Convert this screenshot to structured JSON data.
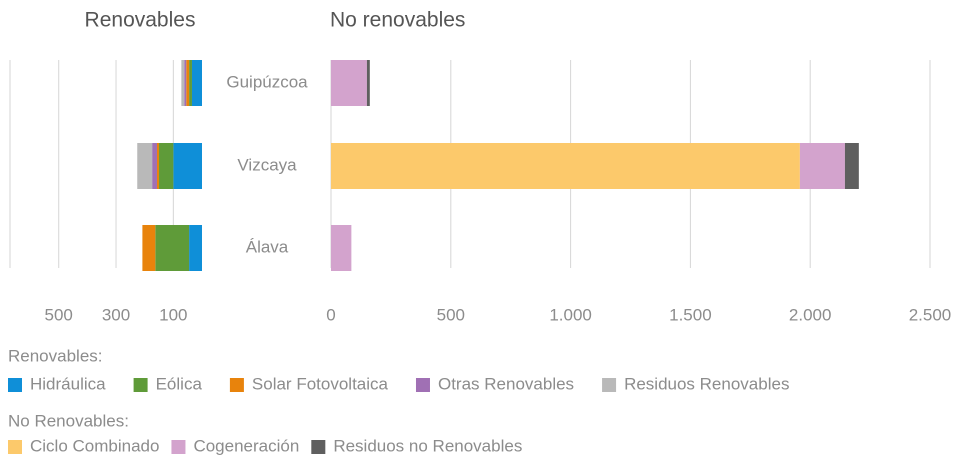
{
  "chart_data": [
    {
      "type": "hbar_stacked",
      "title": "Renovables",
      "legend_title": "Renovables:",
      "categories": [
        "Guipúzcoa",
        "Vizcaya",
        "Álava"
      ],
      "xlim": [
        670,
        0
      ],
      "xticks": [
        500,
        300,
        100
      ],
      "grid": true,
      "series": [
        {
          "name": "Hidráulica",
          "color": "#0f8fd8",
          "values": [
            35,
            100,
            45
          ]
        },
        {
          "name": "Eólica",
          "color": "#5f9b39",
          "values": [
            10,
            50,
            118
          ]
        },
        {
          "name": "Solar Fotovoltaica",
          "color": "#e8830c",
          "values": [
            10,
            7,
            45
          ]
        },
        {
          "name": "Otras Renovables",
          "color": "#a070b4",
          "values": [
            7,
            17,
            0
          ]
        },
        {
          "name": "Residuos Renovables",
          "color": "#b9b9b9",
          "values": [
            10,
            52,
            0
          ]
        }
      ]
    },
    {
      "type": "hbar_stacked",
      "title": "No renovables",
      "legend_title": "No Renovables:",
      "xlim": [
        0,
        2500
      ],
      "xticks": [
        0,
        500,
        {
          "value": 1000,
          "label": "1.000"
        },
        {
          "value": 1500,
          "label": "1.500"
        },
        {
          "value": 2000,
          "label": "2.000"
        },
        {
          "value": 2500,
          "label": "2.500"
        }
      ],
      "grid": true,
      "series": [
        {
          "name": "Ciclo Combinado",
          "color": "#fcc96b",
          "values": [
            0,
            1957,
            0
          ]
        },
        {
          "name": "Cogeneración",
          "color": "#d3a3cd",
          "values": [
            150,
            188,
            85
          ]
        },
        {
          "name": "Residuos no Renovables",
          "color": "#5f5f5f",
          "values": [
            12,
            58,
            0
          ]
        }
      ]
    }
  ]
}
